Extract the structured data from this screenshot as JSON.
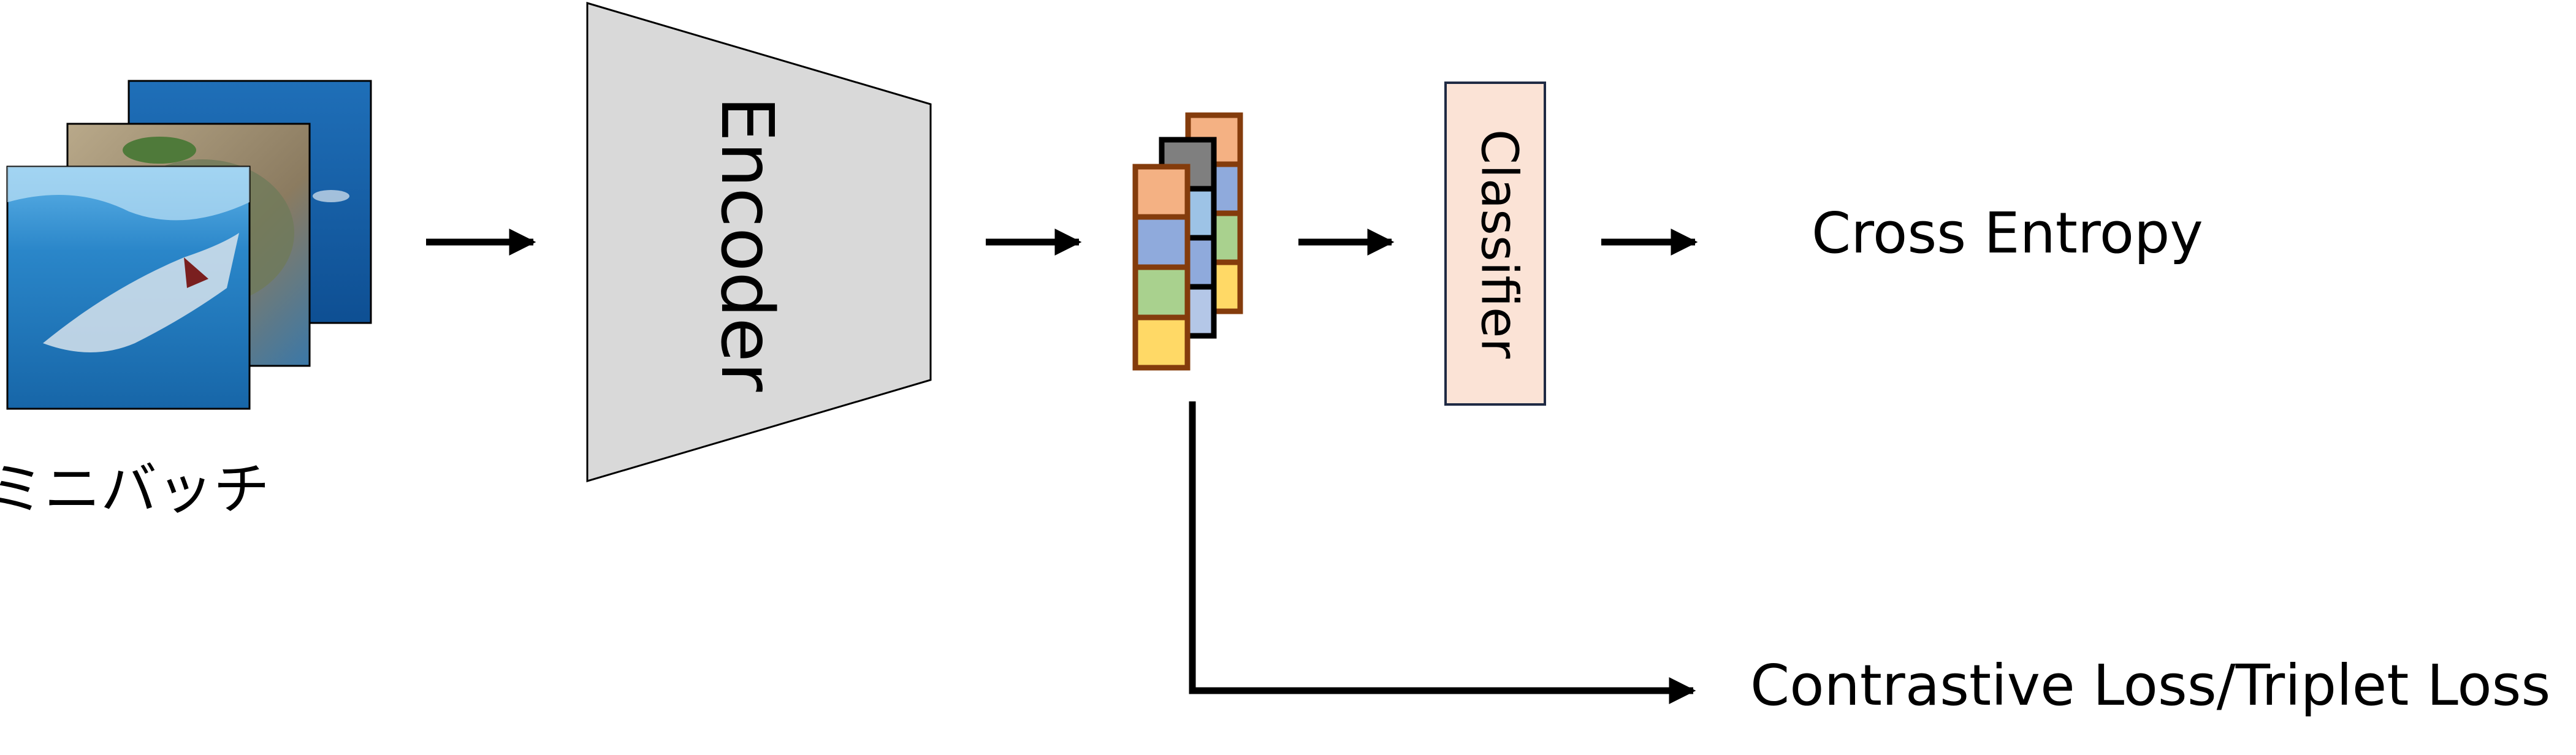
{
  "diagram": {
    "minibatch_label": "ミニバッチ",
    "encoder_label": "Encoder",
    "classifier_label": "Classifier",
    "cross_entropy_label": "Cross Entropy",
    "contrastive_label": "Contrastive Loss/Triplet Loss"
  },
  "images": [
    {
      "name": "underwater-photo",
      "depicts": "ocean-water"
    },
    {
      "name": "sea-turtle-photo",
      "depicts": "sea-turtle"
    },
    {
      "name": "shark-photo",
      "depicts": "shark"
    }
  ],
  "colors": {
    "encoder_fill": "#d9d9d9",
    "classifier_fill": "#fbe3d6",
    "classifier_border": "#1f2a44",
    "feature_border": "#843c0c",
    "feature_cells": [
      "#f4b183",
      "#8faadc",
      "#a9d18e",
      "#ffd966"
    ],
    "feature_mid_cells": [
      "#7f7f7f",
      "#9dc3e6",
      "#8faadc",
      "#b4c7e7"
    ],
    "arrow": "#000000"
  }
}
